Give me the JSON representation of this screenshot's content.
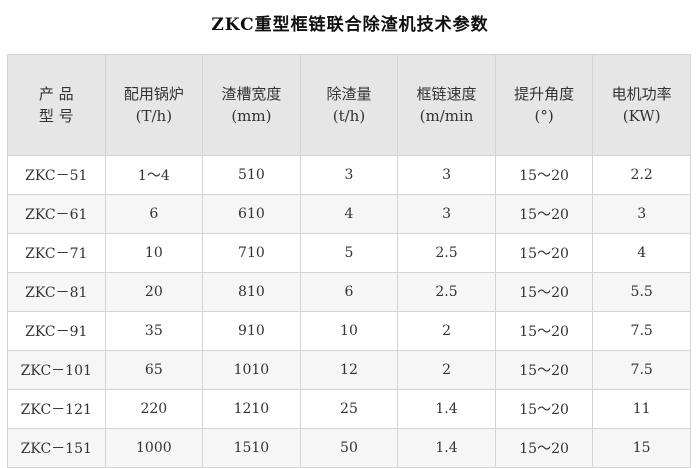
{
  "title": "ZKC重型框链联合除渣机技术参数",
  "headers": [
    [
      "产 品",
      "型 号"
    ],
    [
      "配用锅炉",
      "(T/h)"
    ],
    [
      "渣槽宽度",
      "(mm)"
    ],
    [
      "除渣量",
      "(t/h)"
    ],
    [
      "框链速度",
      "(m/min"
    ],
    [
      "提升角度",
      "(°)"
    ],
    [
      "电机功率",
      "(KW)"
    ]
  ],
  "rows": [
    [
      "ZKC－51",
      "1～4",
      "510",
      "3",
      "3",
      "15～20",
      "2.2"
    ],
    [
      "ZKC－61",
      "6",
      "610",
      "4",
      "3",
      "15～20",
      "3"
    ],
    [
      "ZKC－71",
      "10",
      "710",
      "5",
      "2.5",
      "15～20",
      "4"
    ],
    [
      "ZKC－81",
      "20",
      "810",
      "6",
      "2.5",
      "15～20",
      "5.5"
    ],
    [
      "ZKC－91",
      "35",
      "910",
      "10",
      "2",
      "15～20",
      "7.5"
    ],
    [
      "ZKC－101",
      "65",
      "1010",
      "12",
      "2",
      "15～20",
      "7.5"
    ],
    [
      "ZKC－121",
      "220",
      "1210",
      "25",
      "1.4",
      "15～20",
      "11"
    ],
    [
      "ZKC－151",
      "1000",
      "1510",
      "50",
      "1.4",
      "15～20",
      "15"
    ]
  ]
}
